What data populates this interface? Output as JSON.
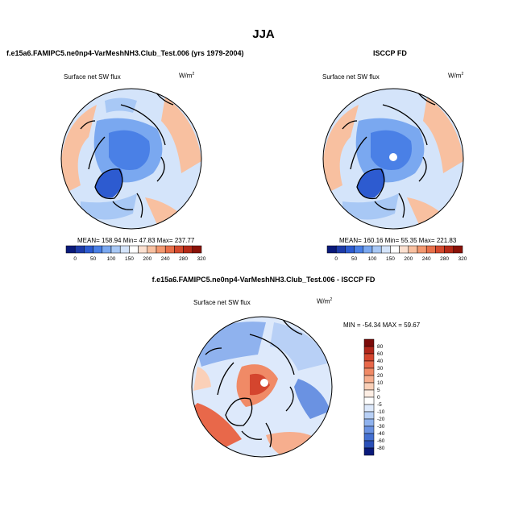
{
  "figure": {
    "title": "JJA",
    "panel_left_title": "f.e15a6.FAMIPC5.ne0np4-VarMeshNH3.Club_Test.006 (yrs 1979-2004)",
    "panel_right_title": "ISCCP FD",
    "panel_diff_title": "f.e15a6.FAMIPC5.ne0np4-VarMeshNH3.Club_Test.006 - ISCCP FD"
  },
  "chart_data": [
    {
      "type": "heatmap",
      "projection": "north-polar-stereographic",
      "variable": "Surface net SW flux",
      "units": "W/m",
      "units_sup": "2",
      "stats": {
        "mean_label": "MEAN=",
        "mean": "158.94",
        "min_label": "Min=",
        "min": "47.83",
        "max_label": "Max=",
        "max": "237.77"
      },
      "colorbar": {
        "orientation": "horizontal",
        "levels": [
          "0",
          "50",
          "100",
          "150",
          "200",
          "240",
          "280",
          "320"
        ],
        "colors": [
          "#0a1a7a",
          "#1d3aa8",
          "#2d5bd0",
          "#4a80e6",
          "#7aa8f0",
          "#a8c8f5",
          "#d4e4fa",
          "#ffffff",
          "#fbe0d0",
          "#f8c0a0",
          "#f39870",
          "#e8704a",
          "#d44a2e",
          "#b52a18",
          "#8a1208"
        ]
      }
    },
    {
      "type": "heatmap",
      "projection": "north-polar-stereographic",
      "variable": "Surface net SW flux",
      "units": "W/m",
      "units_sup": "2",
      "stats": {
        "mean_label": "MEAN=",
        "mean": "160.16",
        "min_label": "Min=",
        "min": "55.35",
        "max_label": "Max=",
        "max": "221.83"
      },
      "colorbar": {
        "orientation": "horizontal",
        "levels": [
          "0",
          "50",
          "100",
          "150",
          "200",
          "240",
          "280",
          "320"
        ],
        "colors": [
          "#0a1a7a",
          "#1d3aa8",
          "#2d5bd0",
          "#4a80e6",
          "#7aa8f0",
          "#a8c8f5",
          "#d4e4fa",
          "#ffffff",
          "#fbe0d0",
          "#f8c0a0",
          "#f39870",
          "#e8704a",
          "#d44a2e",
          "#b52a18",
          "#8a1208"
        ]
      }
    },
    {
      "type": "heatmap",
      "projection": "north-polar-stereographic",
      "variable": "Surface net SW flux",
      "units": "W/m",
      "units_sup": "2",
      "stats": {
        "min_label": "MIN =",
        "min": "-54.34",
        "max_label": "MAX =",
        "max": "59.67"
      },
      "colorbar": {
        "orientation": "vertical",
        "levels": [
          "80",
          "60",
          "40",
          "30",
          "20",
          "10",
          "5",
          "0",
          "-5",
          "-10",
          "-20",
          "-30",
          "-40",
          "-60",
          "-80"
        ],
        "colors": [
          "#7a0a08",
          "#b0261a",
          "#d4452e",
          "#e8684a",
          "#f08a66",
          "#f6ae8e",
          "#fad0b8",
          "#fdeee4",
          "#ffffff",
          "#dde9fb",
          "#b8d0f6",
          "#8fb2ee",
          "#6a92e2",
          "#4470d2",
          "#2a50b8",
          "#0a1a7a"
        ]
      }
    }
  ]
}
